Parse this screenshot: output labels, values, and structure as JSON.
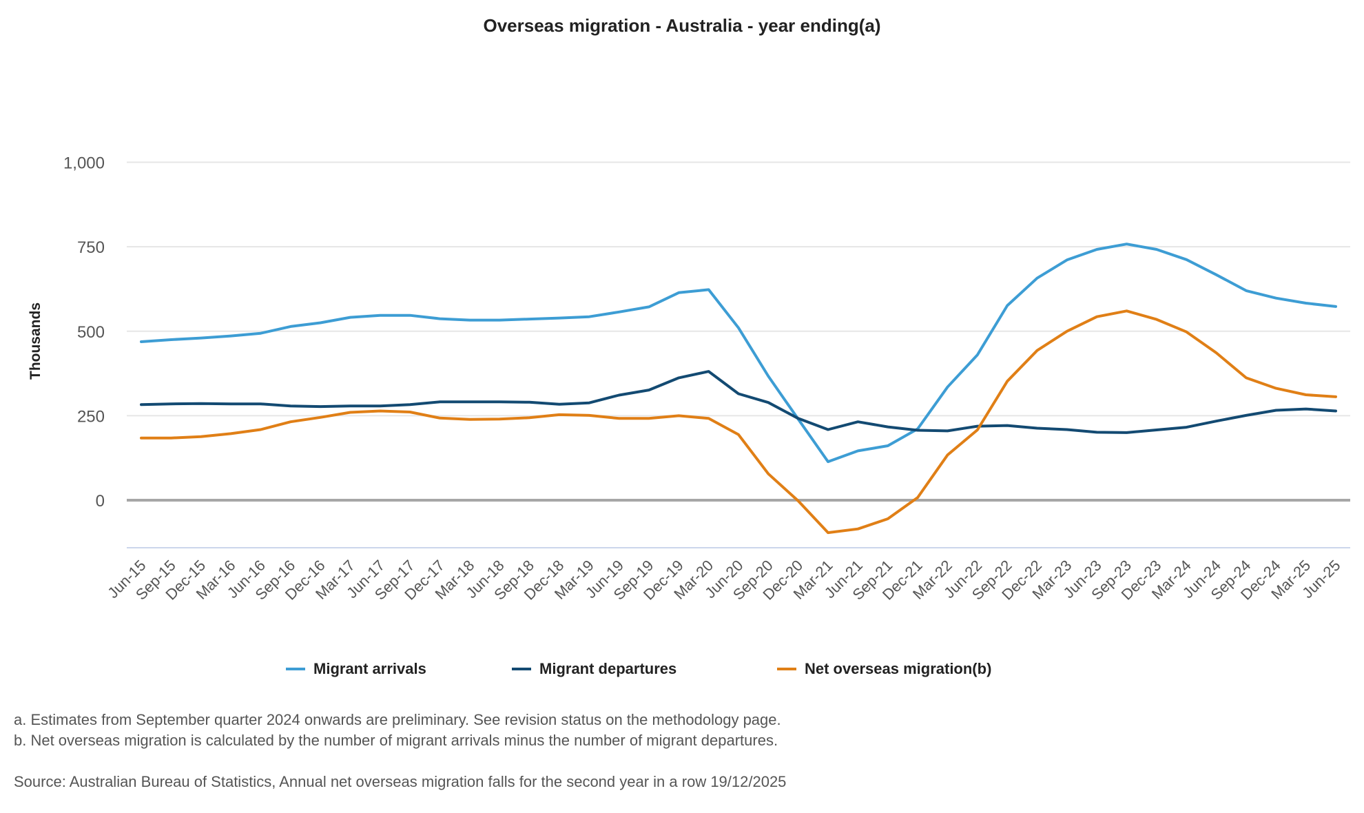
{
  "chart_data": {
    "type": "line",
    "title": "Overseas migration - Australia - year ending(a)",
    "xlabel": "",
    "ylabel": "Thousands",
    "ylim": [
      -110,
      1000
    ],
    "yticks": [
      0,
      250,
      500,
      750,
      1000
    ],
    "ytick_labels": [
      "0",
      "250",
      "500",
      "750",
      "1,000"
    ],
    "grid": true,
    "legend_position": "bottom",
    "categories": [
      "Jun-15",
      "Sep-15",
      "Dec-15",
      "Mar-16",
      "Jun-16",
      "Sep-16",
      "Dec-16",
      "Mar-17",
      "Jun-17",
      "Sep-17",
      "Dec-17",
      "Mar-18",
      "Jun-18",
      "Sep-18",
      "Dec-18",
      "Mar-19",
      "Jun-19",
      "Sep-19",
      "Dec-19",
      "Mar-20",
      "Jun-20",
      "Sep-20",
      "Dec-20",
      "Mar-21",
      "Jun-21",
      "Sep-21",
      "Dec-21",
      "Mar-22",
      "Jun-22",
      "Sep-22",
      "Dec-22",
      "Mar-23",
      "Jun-23",
      "Sep-23",
      "Dec-23",
      "Mar-24",
      "Jun-24",
      "Sep-24",
      "Dec-24",
      "Mar-25",
      "Jun-25"
    ],
    "series": [
      {
        "name": "Migrant arrivals",
        "color": "#3d9dd4",
        "values": [
          469,
          475,
          480,
          486,
          494,
          514,
          525,
          541,
          547,
          547,
          537,
          533,
          533,
          536,
          539,
          543,
          557,
          572,
          614,
          623,
          510,
          367,
          240,
          114,
          146,
          161,
          211,
          335,
          430,
          576,
          657,
          711,
          742,
          758,
          742,
          712,
          667,
          620,
          598,
          583,
          573
        ]
      },
      {
        "name": "Migrant departures",
        "color": "#134a72",
        "values": [
          283,
          285,
          286,
          285,
          285,
          279,
          277,
          279,
          279,
          283,
          291,
          291,
          291,
          290,
          284,
          288,
          311,
          326,
          362,
          381,
          315,
          289,
          242,
          209,
          232,
          217,
          207,
          205,
          219,
          221,
          213,
          209,
          201,
          200,
          208,
          216,
          234,
          251,
          266,
          270,
          264
        ]
      },
      {
        "name": "Net overseas migration(b)",
        "color": "#e07f16",
        "values": [
          184,
          184,
          188,
          197,
          209,
          232,
          245,
          260,
          264,
          261,
          243,
          239,
          240,
          244,
          253,
          251,
          242,
          242,
          250,
          242,
          194,
          78,
          -2,
          -96,
          -85,
          -55,
          8,
          134,
          208,
          352,
          443,
          500,
          543,
          560,
          535,
          498,
          436,
          362,
          331,
          312,
          306
        ]
      }
    ]
  },
  "footnotes": {
    "a": "a. Estimates from September quarter 2024 onwards are preliminary. See revision status on the methodology page.",
    "b": "b. Net overseas migration is calculated by the number of migrant arrivals minus the number of migrant departures.",
    "source": "Source: Australian Bureau of Statistics, Annual net overseas migration falls for the second year in a row 19/12/2025"
  }
}
